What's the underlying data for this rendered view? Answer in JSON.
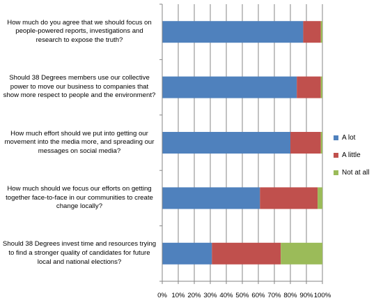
{
  "chart_data": {
    "type": "bar",
    "orientation": "horizontal",
    "stacked": true,
    "percent_stacked": true,
    "categories": [
      "How much do you agree that we should focus on people-powered reports, investigations and research to expose the truth?",
      "Should 38 Degrees members use our collective power to move our business to companies that show more respect to people and the environment?",
      "How much effort should we put into getting our movement into the media more, and spreading our messages on social media?",
      "How much should we focus our efforts on getting together face-to-face in our communities to create change locally?",
      "Should 38 Degrees invest time and resources trying to find a stronger quality of candidates for future local and national elections?"
    ],
    "series": [
      {
        "name": "A lot",
        "color": "#4f81bd",
        "values": [
          88,
          84,
          80,
          61,
          31
        ]
      },
      {
        "name": "A little",
        "color": "#c0504d",
        "values": [
          11,
          15,
          19,
          36,
          43
        ]
      },
      {
        "name": "Not at all",
        "color": "#9bbb59",
        "values": [
          1,
          1,
          1,
          3,
          26
        ]
      }
    ],
    "x_ticks": [
      "0%",
      "10%",
      "20%",
      "30%",
      "40%",
      "50%",
      "60%",
      "70%",
      "80%",
      "90%",
      "100%"
    ],
    "xlim": [
      0,
      100
    ],
    "grid": "vertical",
    "legend_position": "right"
  }
}
